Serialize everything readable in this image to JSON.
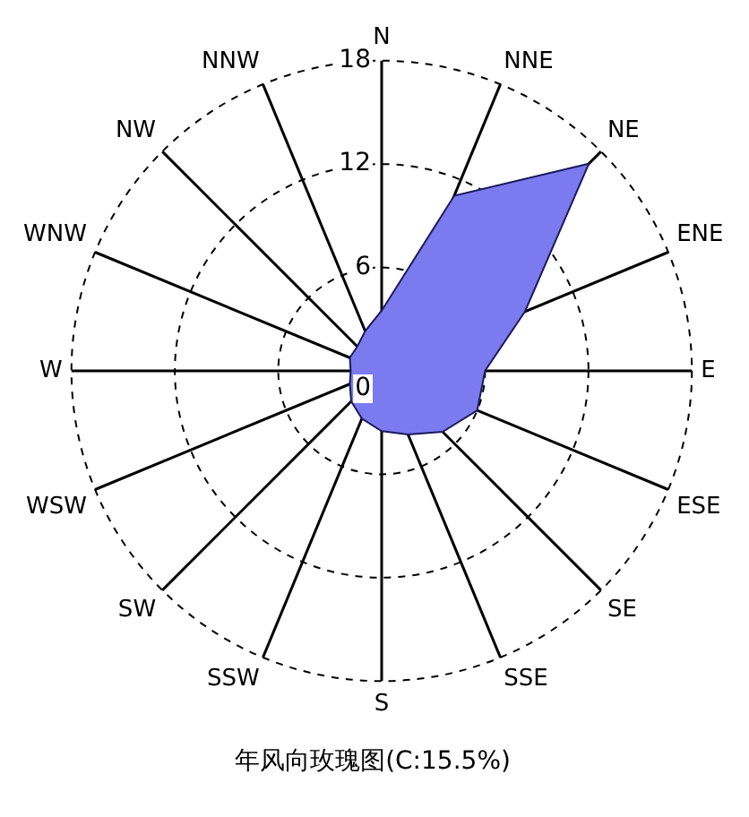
{
  "chart_data": {
    "type": "radar",
    "title": "年风向玫瑰图(C:15.5%)",
    "categories": [
      "N",
      "NNE",
      "NE",
      "ENE",
      "E",
      "ESE",
      "SE",
      "SSE",
      "S",
      "SSW",
      "SW",
      "WSW",
      "W",
      "WNW",
      "NW",
      "NNW"
    ],
    "series": [
      {
        "color": "#7b7bef",
        "values": [
          3.5,
          11,
          17,
          9,
          6,
          6,
          5,
          4,
          3.5,
          3,
          2.5,
          2,
          1.8,
          2,
          2,
          2.5
        ]
      }
    ],
    "ylim": [
      0,
      18
    ],
    "yticks": [
      0,
      6,
      12,
      18
    ],
    "grid": true,
    "legend": false
  }
}
